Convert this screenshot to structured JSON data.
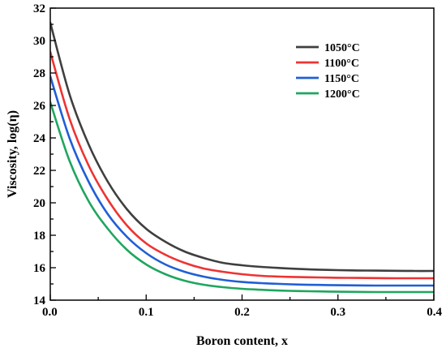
{
  "chart_data": {
    "type": "line",
    "title": "",
    "xlabel": "Boron content, x",
    "ylabel": "Viscosity, log(η)",
    "xlim": [
      0.0,
      0.4
    ],
    "ylim": [
      14,
      32
    ],
    "xticks": [
      "0.0",
      "0.1",
      "0.2",
      "0.3",
      "0.4"
    ],
    "yticks": [
      "14",
      "16",
      "18",
      "20",
      "22",
      "24",
      "26",
      "28",
      "30",
      "32"
    ],
    "grid": false,
    "legend_position": "top-right",
    "x": [
      0.0,
      0.02,
      0.04,
      0.06,
      0.08,
      0.1,
      0.12,
      0.14,
      0.16,
      0.18,
      0.2,
      0.22,
      0.24,
      0.26,
      0.28,
      0.3,
      0.32,
      0.34,
      0.36,
      0.38,
      0.4
    ],
    "series": [
      {
        "name": "1050°C",
        "color": "#3f3f3f",
        "values": [
          31.1,
          26.7,
          23.6,
          21.3,
          19.6,
          18.4,
          17.6,
          17.0,
          16.6,
          16.3,
          16.15,
          16.05,
          15.98,
          15.92,
          15.88,
          15.85,
          15.83,
          15.82,
          15.81,
          15.8,
          15.8
        ]
      },
      {
        "name": "1100°C",
        "color": "#ee3333",
        "values": [
          29.3,
          25.2,
          22.3,
          20.2,
          18.6,
          17.5,
          16.8,
          16.3,
          15.95,
          15.75,
          15.6,
          15.5,
          15.45,
          15.42,
          15.4,
          15.38,
          15.37,
          15.36,
          15.35,
          15.35,
          15.35
        ]
      },
      {
        "name": "1150°C",
        "color": "#1f5fd6",
        "values": [
          27.8,
          24.0,
          21.3,
          19.3,
          17.9,
          16.9,
          16.2,
          15.75,
          15.45,
          15.25,
          15.12,
          15.05,
          15.0,
          14.96,
          14.94,
          14.92,
          14.91,
          14.9,
          14.9,
          14.9,
          14.9
        ]
      },
      {
        "name": "1200°C",
        "color": "#1fa65f",
        "values": [
          26.2,
          22.6,
          20.1,
          18.4,
          17.1,
          16.2,
          15.6,
          15.2,
          14.95,
          14.8,
          14.7,
          14.64,
          14.59,
          14.56,
          14.54,
          14.52,
          14.51,
          14.5,
          14.5,
          14.5,
          14.5
        ]
      }
    ]
  }
}
